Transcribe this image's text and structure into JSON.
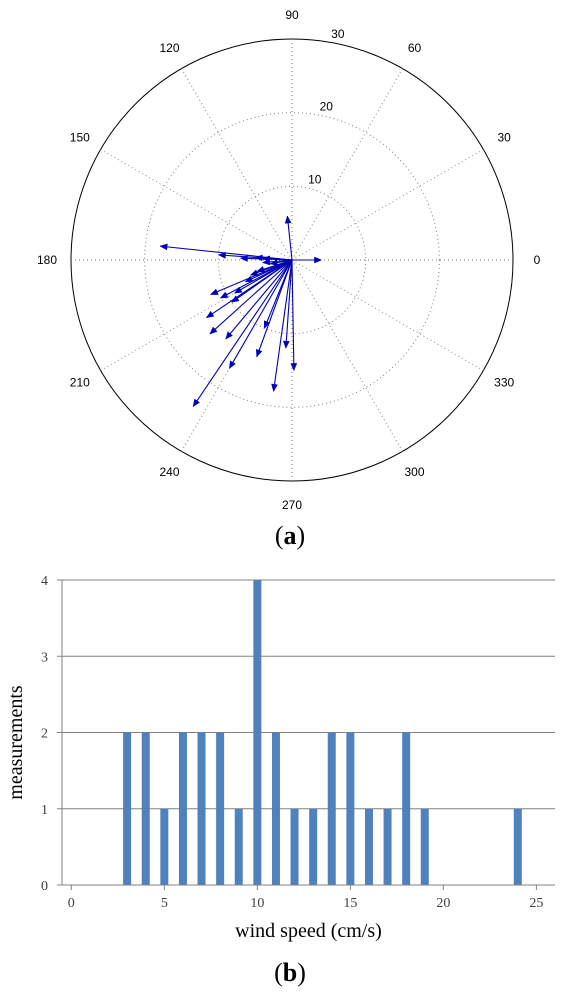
{
  "panels": {
    "a": {
      "open": "(",
      "letter": "a",
      "close": ")"
    },
    "b": {
      "open": "(",
      "letter": "b",
      "close": ")"
    }
  },
  "colors": {
    "arrow": "#0000b4",
    "bar": "#4f81bd",
    "grid": "#808080",
    "axis": "#000000"
  },
  "chart_data": [
    {
      "type": "polar",
      "title": "",
      "radial_ticks": [
        10,
        20,
        30
      ],
      "rmax": 30,
      "angle_ticks": [
        0,
        30,
        60,
        90,
        120,
        150,
        180,
        210,
        240,
        270,
        300,
        330
      ],
      "grid": true,
      "series": [
        {
          "values": [
            {
              "angle": 96,
              "speed": 6
            },
            {
              "angle": 0,
              "speed": 4
            },
            {
              "angle": 177,
              "speed": 4
            },
            {
              "angle": 176,
              "speed": 5
            },
            {
              "angle": 178,
              "speed": 7
            },
            {
              "angle": 176,
              "speed": 10
            },
            {
              "angle": 174,
              "speed": 18
            },
            {
              "angle": 185,
              "speed": 4
            },
            {
              "angle": 190,
              "speed": 3
            },
            {
              "angle": 198,
              "speed": 5
            },
            {
              "angle": 200,
              "speed": 6
            },
            {
              "angle": 205,
              "speed": 7
            },
            {
              "angle": 210,
              "speed": 9
            },
            {
              "angle": 215,
              "speed": 10
            },
            {
              "angle": 208,
              "speed": 11
            },
            {
              "angle": 203,
              "speed": 12
            },
            {
              "angle": 214,
              "speed": 14
            },
            {
              "angle": 222,
              "speed": 15
            },
            {
              "angle": 230,
              "speed": 14
            },
            {
              "angle": 240,
              "speed": 17
            },
            {
              "angle": 248,
              "speed": 10
            },
            {
              "angle": 250,
              "speed": 14
            },
            {
              "angle": 262,
              "speed": 18
            },
            {
              "angle": 266,
              "speed": 12
            },
            {
              "angle": 271,
              "speed": 15
            },
            {
              "angle": 236,
              "speed": 24
            }
          ]
        }
      ]
    },
    {
      "type": "bar",
      "title": "",
      "xlabel": "wind speed (cm/s)",
      "ylabel": "measurements",
      "x": [
        3,
        4,
        5,
        6,
        7,
        8,
        9,
        10,
        11,
        12,
        13,
        14,
        15,
        16,
        17,
        18,
        19,
        24
      ],
      "values": [
        2,
        2,
        1,
        2,
        2,
        2,
        1,
        4,
        2,
        1,
        1,
        2,
        2,
        1,
        1,
        2,
        1,
        1
      ],
      "xlim": [
        -0.5,
        26
      ],
      "ylim": [
        0,
        4
      ],
      "xticks": [
        0,
        5,
        10,
        15,
        20,
        25
      ],
      "yticks": [
        0,
        1,
        2,
        3,
        4
      ],
      "grid": true
    }
  ]
}
